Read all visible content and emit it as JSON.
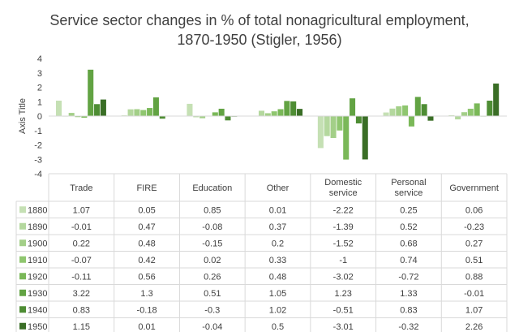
{
  "chart_data": {
    "type": "bar",
    "title_lines": [
      "Service sector changes in % of total nonagricultural employment,",
      "1870-1950 (Stigler, 1956)"
    ],
    "ylabel": "Axis Title",
    "ylim": [
      -4,
      4
    ],
    "yticks": [
      "4",
      "3",
      "2",
      "1",
      "0",
      "-1",
      "-2",
      "-3",
      "-4"
    ],
    "grid": false,
    "categories": [
      "Trade",
      "FIRE",
      "Education",
      "Other",
      "Domestic service",
      "Personal service",
      "Government"
    ],
    "category_lines": [
      [
        "Trade"
      ],
      [
        "FIRE"
      ],
      [
        "Education"
      ],
      [
        "Other"
      ],
      [
        "Domestic",
        "service"
      ],
      [
        "Personal",
        "service"
      ],
      [
        "Government"
      ]
    ],
    "series": [
      {
        "name": "1880",
        "color": "#c5e0b4",
        "values": [
          1.07,
          0.05,
          0.85,
          0.01,
          -2.22,
          0.25,
          0.06
        ]
      },
      {
        "name": "1890",
        "color": "#b4d89e",
        "values": [
          -0.01,
          0.47,
          -0.08,
          0.37,
          -1.39,
          0.52,
          -0.23
        ]
      },
      {
        "name": "1900",
        "color": "#a3cf88",
        "values": [
          0.22,
          0.48,
          -0.15,
          0.2,
          -1.52,
          0.68,
          0.27
        ]
      },
      {
        "name": "1910",
        "color": "#8fc66f",
        "values": [
          -0.07,
          0.42,
          0.02,
          0.33,
          -1,
          0.74,
          0.51
        ]
      },
      {
        "name": "1920",
        "color": "#7ab858",
        "values": [
          -0.11,
          0.56,
          0.26,
          0.48,
          -3.02,
          -0.72,
          0.88
        ]
      },
      {
        "name": "1930",
        "color": "#62a343",
        "values": [
          3.22,
          1.3,
          0.51,
          1.05,
          1.23,
          1.33,
          -0.01
        ]
      },
      {
        "name": "1940",
        "color": "#4e8d34",
        "values": [
          0.83,
          -0.18,
          -0.3,
          1.02,
          -0.51,
          0.83,
          1.07
        ]
      },
      {
        "name": "1950",
        "color": "#3a6e26",
        "values": [
          1.15,
          0.01,
          -0.04,
          0.5,
          -3.01,
          -0.32,
          2.26
        ]
      }
    ],
    "table_values": [
      [
        "1.07",
        "0.05",
        "0.85",
        "0.01",
        "-2.22",
        "0.25",
        "0.06"
      ],
      [
        "-0.01",
        "0.47",
        "-0.08",
        "0.37",
        "-1.39",
        "0.52",
        "-0.23"
      ],
      [
        "0.22",
        "0.48",
        "-0.15",
        "0.2",
        "-1.52",
        "0.68",
        "0.27"
      ],
      [
        "-0.07",
        "0.42",
        "0.02",
        "0.33",
        "-1",
        "0.74",
        "0.51"
      ],
      [
        "-0.11",
        "0.56",
        "0.26",
        "0.48",
        "-3.02",
        "-0.72",
        "0.88"
      ],
      [
        "3.22",
        "1.3",
        "0.51",
        "1.05",
        "1.23",
        "1.33",
        "-0.01"
      ],
      [
        "0.83",
        "-0.18",
        "-0.3",
        "1.02",
        "-0.51",
        "0.83",
        "1.07"
      ],
      [
        "1.15",
        "0.01",
        "-0.04",
        "0.5",
        "-3.01",
        "-0.32",
        "2.26"
      ]
    ]
  },
  "colors": {
    "axis_line": "#d9d9d9",
    "table_line": "#d9d9d9",
    "text": "#404040"
  }
}
